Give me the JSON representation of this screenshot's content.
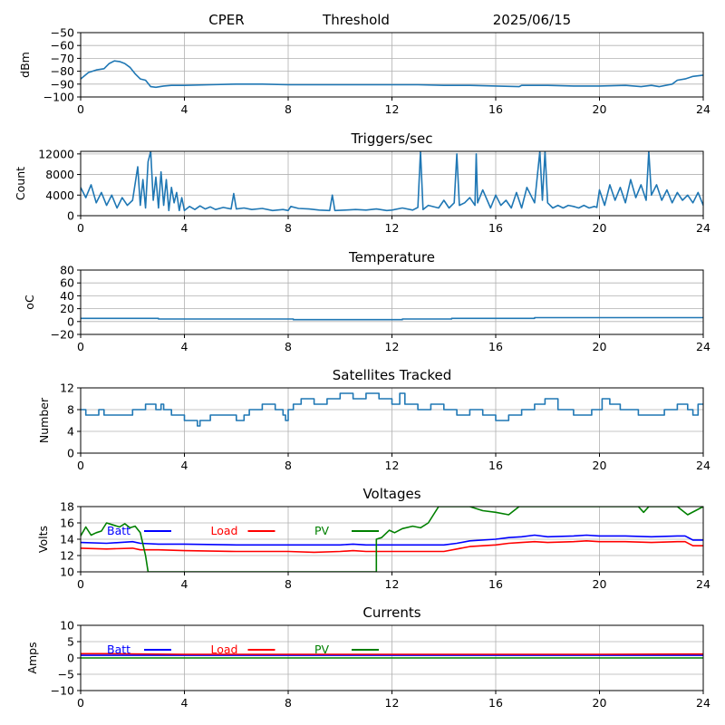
{
  "header": {
    "station": "CPER",
    "mode": "Threshold",
    "date": "2025/06/15"
  },
  "chart_data": [
    {
      "id": "signal",
      "type": "line",
      "title": "",
      "xlabel": "",
      "ylabel": "dBm",
      "xlim": [
        0,
        24
      ],
      "ylim": [
        -100,
        -50
      ],
      "xticks": [
        0,
        4,
        8,
        12,
        16,
        20,
        24
      ],
      "yticks": [
        -100,
        -90,
        -80,
        -70,
        -60,
        -50
      ],
      "grid": true,
      "series": [
        {
          "color": "#1f77b4",
          "x": [
            0,
            0.3,
            0.6,
            0.9,
            1.1,
            1.3,
            1.5,
            1.7,
            1.9,
            2.1,
            2.3,
            2.5,
            2.7,
            2.9,
            3.2,
            3.5,
            4,
            5,
            6,
            7,
            8,
            9,
            10,
            11,
            12,
            13,
            14,
            15,
            16,
            16.9,
            17,
            18,
            19,
            20,
            21,
            21.6,
            22,
            22.3,
            22.8,
            23,
            23.3,
            23.6,
            24
          ],
          "y": [
            -86,
            -81,
            -79,
            -78,
            -74,
            -72,
            -72.5,
            -74,
            -77,
            -82,
            -86,
            -87,
            -92,
            -92.5,
            -91.5,
            -91,
            -91,
            -90.5,
            -90,
            -90,
            -90.5,
            -90.5,
            -90.5,
            -90.5,
            -90.5,
            -90.5,
            -91,
            -91,
            -91.5,
            -92,
            -91,
            -91,
            -91.5,
            -91.5,
            -91,
            -92,
            -91,
            -92,
            -90,
            -87,
            -86,
            -84,
            -83
          ]
        }
      ]
    },
    {
      "id": "triggers",
      "type": "line",
      "title": "Triggers/sec",
      "xlabel": "",
      "ylabel": "Count",
      "xlim": [
        0,
        24
      ],
      "ylim": [
        0,
        12500
      ],
      "xticks": [
        0,
        4,
        8,
        12,
        16,
        20,
        24
      ],
      "yticks": [
        0,
        4000,
        8000,
        12000
      ],
      "grid": true,
      "series": [
        {
          "color": "#1f77b4",
          "x": [
            0,
            0.2,
            0.4,
            0.6,
            0.8,
            1.0,
            1.2,
            1.4,
            1.6,
            1.8,
            2.0,
            2.2,
            2.3,
            2.4,
            2.5,
            2.6,
            2.7,
            2.8,
            2.9,
            3.0,
            3.1,
            3.2,
            3.3,
            3.4,
            3.5,
            3.6,
            3.7,
            3.8,
            3.9,
            4.0,
            4.2,
            4.4,
            4.6,
            4.8,
            5.0,
            5.2,
            5.5,
            5.8,
            5.9,
            6.0,
            6.3,
            6.6,
            7.0,
            7.4,
            7.8,
            8.0,
            8.1,
            8.4,
            8.8,
            9.2,
            9.6,
            9.7,
            9.8,
            10.2,
            10.6,
            11.0,
            11.4,
            11.8,
            12.0,
            12.4,
            12.8,
            13.0,
            13.1,
            13.2,
            13.4,
            13.8,
            14.0,
            14.2,
            14.4,
            14.5,
            14.6,
            14.8,
            15.0,
            15.2,
            15.25,
            15.3,
            15.5,
            15.8,
            16.0,
            16.2,
            16.4,
            16.6,
            16.8,
            17.0,
            17.2,
            17.5,
            17.6,
            17.7,
            17.8,
            17.9,
            18.0,
            18.2,
            18.4,
            18.6,
            18.8,
            19.0,
            19.2,
            19.4,
            19.6,
            19.8,
            19.9,
            20.0,
            20.2,
            20.4,
            20.6,
            20.8,
            21.0,
            21.2,
            21.4,
            21.6,
            21.8,
            21.9,
            22.0,
            22.2,
            22.4,
            22.6,
            22.8,
            23.0,
            23.2,
            23.4,
            23.6,
            23.8,
            24.0
          ],
          "y": [
            5500,
            3500,
            6000,
            2500,
            4500,
            2000,
            4000,
            1500,
            3500,
            2000,
            3000,
            9500,
            2000,
            7000,
            1500,
            10500,
            12500,
            3000,
            7500,
            1500,
            8500,
            2000,
            7000,
            1000,
            5500,
            2500,
            4500,
            1000,
            3500,
            1000,
            1800,
            1200,
            1900,
            1300,
            1700,
            1200,
            1600,
            1300,
            4300,
            1300,
            1500,
            1200,
            1400,
            1000,
            1200,
            1000,
            1800,
            1400,
            1300,
            1100,
            1000,
            4000,
            1000,
            1100,
            1200,
            1100,
            1300,
            1000,
            1100,
            1500,
            1100,
            1600,
            12500,
            1200,
            2000,
            1500,
            3000,
            1500,
            2500,
            12000,
            2000,
            2500,
            3500,
            2000,
            12000,
            2500,
            5000,
            1500,
            4000,
            2000,
            3000,
            1500,
            4500,
            1500,
            5500,
            2500,
            7500,
            12500,
            3000,
            12500,
            2500,
            1500,
            2000,
            1500,
            2000,
            1800,
            1500,
            2000,
            1500,
            1800,
            1600,
            5000,
            2000,
            6000,
            3000,
            5500,
            2500,
            7000,
            3500,
            6000,
            3000,
            12500,
            4000,
            6000,
            3000,
            5000,
            2500,
            4500,
            3000,
            4000,
            2500,
            4500,
            2000
          ]
        }
      ]
    },
    {
      "id": "temperature",
      "type": "line",
      "title": "Temperature",
      "xlabel": "",
      "ylabel": "oC",
      "xlim": [
        0,
        24
      ],
      "ylim": [
        -20,
        80
      ],
      "xticks": [
        0,
        4,
        8,
        12,
        16,
        20,
        24
      ],
      "yticks": [
        -20,
        0,
        20,
        40,
        60,
        80
      ],
      "grid": true,
      "series": [
        {
          "color": "#1f77b4",
          "x": [
            0,
            3.0,
            3.0,
            8.2,
            8.2,
            12.4,
            12.4,
            14.3,
            14.3,
            17.5,
            17.5,
            24
          ],
          "y": [
            5,
            5,
            4,
            4,
            3,
            3,
            4,
            4,
            5,
            5,
            6,
            6
          ]
        }
      ]
    },
    {
      "id": "satellites",
      "type": "line",
      "title": "Satellites Tracked",
      "xlabel": "",
      "ylabel": "Number",
      "xlim": [
        0,
        24
      ],
      "ylim": [
        0,
        12
      ],
      "xticks": [
        0,
        4,
        8,
        12,
        16,
        20,
        24
      ],
      "yticks": [
        0,
        4,
        8,
        12
      ],
      "grid": true,
      "series": [
        {
          "color": "#1f77b4",
          "x": [
            0,
            0.2,
            0.2,
            0.7,
            0.7,
            0.9,
            0.9,
            2.0,
            2.0,
            2.5,
            2.5,
            2.9,
            2.9,
            3.1,
            3.1,
            3.2,
            3.2,
            3.5,
            3.5,
            4.0,
            4.0,
            4.5,
            4.5,
            4.6,
            4.6,
            5.0,
            5.0,
            6.0,
            6.0,
            6.3,
            6.3,
            6.5,
            6.5,
            7.0,
            7.0,
            7.5,
            7.5,
            7.8,
            7.8,
            7.9,
            7.9,
            8.0,
            8.0,
            8.2,
            8.2,
            8.5,
            8.5,
            9.0,
            9.0,
            9.5,
            9.5,
            10.0,
            10.0,
            10.5,
            10.5,
            11.0,
            11.0,
            11.5,
            11.5,
            12.0,
            12.0,
            12.3,
            12.3,
            12.5,
            12.5,
            13.0,
            13.0,
            13.5,
            13.5,
            14.0,
            14.0,
            14.5,
            14.5,
            15.0,
            15.0,
            15.5,
            15.5,
            16.0,
            16.0,
            16.5,
            16.5,
            17.0,
            17.0,
            17.5,
            17.5,
            17.9,
            17.9,
            18.4,
            18.4,
            19.0,
            19.0,
            19.7,
            19.7,
            20.1,
            20.1,
            20.4,
            20.4,
            20.8,
            20.8,
            21.5,
            21.5,
            22.5,
            22.5,
            23.0,
            23.0,
            23.4,
            23.4,
            23.6,
            23.6,
            23.8,
            23.8,
            24
          ],
          "y": [
            8,
            8,
            7,
            7,
            8,
            8,
            7,
            7,
            8,
            8,
            9,
            9,
            8,
            8,
            9,
            9,
            8,
            8,
            7,
            7,
            6,
            6,
            5,
            5,
            6,
            6,
            7,
            7,
            6,
            6,
            7,
            7,
            8,
            8,
            9,
            9,
            8,
            8,
            7,
            7,
            6,
            6,
            8,
            8,
            9,
            9,
            10,
            10,
            9,
            9,
            10,
            10,
            11,
            11,
            10,
            10,
            11,
            11,
            10,
            10,
            9,
            9,
            11,
            11,
            9,
            9,
            8,
            8,
            9,
            9,
            8,
            8,
            7,
            7,
            8,
            8,
            7,
            7,
            6,
            6,
            7,
            7,
            8,
            8,
            9,
            9,
            10,
            10,
            8,
            8,
            7,
            7,
            8,
            8,
            10,
            10,
            9,
            9,
            8,
            8,
            7,
            7,
            8,
            8,
            9,
            9,
            8,
            8,
            7,
            7,
            9,
            9
          ]
        }
      ]
    },
    {
      "id": "voltages",
      "type": "line",
      "title": "Voltages",
      "xlabel": "",
      "ylabel": "Volts",
      "xlim": [
        0,
        24
      ],
      "ylim": [
        10,
        18
      ],
      "xticks": [
        0,
        4,
        8,
        12,
        16,
        20,
        24
      ],
      "yticks": [
        10,
        12,
        14,
        16,
        18
      ],
      "grid": true,
      "legend": "top-left",
      "series": [
        {
          "name": "Batt",
          "color": "#0000ff",
          "x": [
            0,
            1,
            2,
            2.3,
            3,
            4,
            6,
            8,
            9,
            10,
            10.5,
            11,
            12,
            13,
            14,
            14.5,
            15,
            16,
            16.5,
            17,
            17.5,
            18,
            19,
            19.5,
            20,
            21,
            22,
            23,
            23.3,
            23.6,
            24
          ],
          "y": [
            13.6,
            13.5,
            13.7,
            13.5,
            13.4,
            13.4,
            13.3,
            13.3,
            13.3,
            13.3,
            13.4,
            13.3,
            13.3,
            13.3,
            13.3,
            13.5,
            13.8,
            14.0,
            14.2,
            14.3,
            14.5,
            14.3,
            14.4,
            14.5,
            14.4,
            14.4,
            14.3,
            14.4,
            14.4,
            13.9,
            13.9
          ]
        },
        {
          "name": "Load",
          "color": "#ff0000",
          "x": [
            0,
            1,
            2,
            2.3,
            3,
            4,
            6,
            8,
            9,
            10,
            10.5,
            11,
            12,
            13,
            14,
            14.5,
            15,
            16,
            16.5,
            17,
            17.5,
            18,
            19,
            19.5,
            20,
            21,
            22,
            23,
            23.3,
            23.6,
            24
          ],
          "y": [
            12.9,
            12.8,
            12.9,
            12.7,
            12.7,
            12.6,
            12.5,
            12.5,
            12.4,
            12.5,
            12.6,
            12.5,
            12.5,
            12.5,
            12.5,
            12.8,
            13.1,
            13.3,
            13.5,
            13.6,
            13.7,
            13.6,
            13.7,
            13.8,
            13.7,
            13.7,
            13.6,
            13.7,
            13.7,
            13.2,
            13.2
          ]
        },
        {
          "name": "PV",
          "color": "#008000",
          "x": [
            0,
            0.2,
            0.4,
            0.6,
            0.8,
            1.0,
            1.2,
            1.5,
            1.7,
            1.9,
            2.1,
            2.3,
            2.5,
            2.6,
            2.6,
            11.4,
            11.4,
            11.6,
            11.9,
            12.1,
            12.4,
            12.8,
            13.1,
            13.4,
            13.6,
            13.8,
            15.0,
            15.5,
            16.0,
            16.5,
            16.9,
            21.5,
            21.7,
            21.9,
            23.0,
            23.4,
            23.7,
            24
          ],
          "y": [
            14.4,
            15.5,
            14.5,
            14.8,
            15.0,
            16.0,
            15.8,
            15.5,
            15.9,
            15.4,
            15.6,
            14.8,
            12.0,
            10.0,
            10.0,
            10.0,
            14.0,
            14.2,
            15.1,
            14.8,
            15.3,
            15.6,
            15.4,
            16.0,
            17.0,
            18.0,
            18.0,
            17.5,
            17.3,
            17.0,
            18.0,
            18.0,
            17.3,
            18.0,
            18.0,
            17.0,
            17.5,
            18.0
          ]
        }
      ]
    },
    {
      "id": "currents",
      "type": "line",
      "title": "Currents",
      "xlabel": "",
      "ylabel": "Amps",
      "xlim": [
        0,
        24
      ],
      "ylim": [
        -10,
        10
      ],
      "xticks": [
        0,
        4,
        8,
        12,
        16,
        20,
        24
      ],
      "yticks": [
        -10,
        -5,
        0,
        5,
        10
      ],
      "grid": true,
      "legend": "top-left",
      "series": [
        {
          "name": "Batt",
          "color": "#0000ff",
          "x": [
            0,
            24
          ],
          "y": [
            0.8,
            0.8
          ]
        },
        {
          "name": "Load",
          "color": "#ff0000",
          "x": [
            0,
            1,
            4,
            8,
            12,
            16,
            20,
            24
          ],
          "y": [
            1.3,
            1.3,
            1.1,
            1.1,
            1.1,
            1.1,
            1.1,
            1.2
          ]
        },
        {
          "name": "PV",
          "color": "#008000",
          "x": [
            0,
            24
          ],
          "y": [
            0.0,
            0.0
          ]
        }
      ]
    }
  ]
}
